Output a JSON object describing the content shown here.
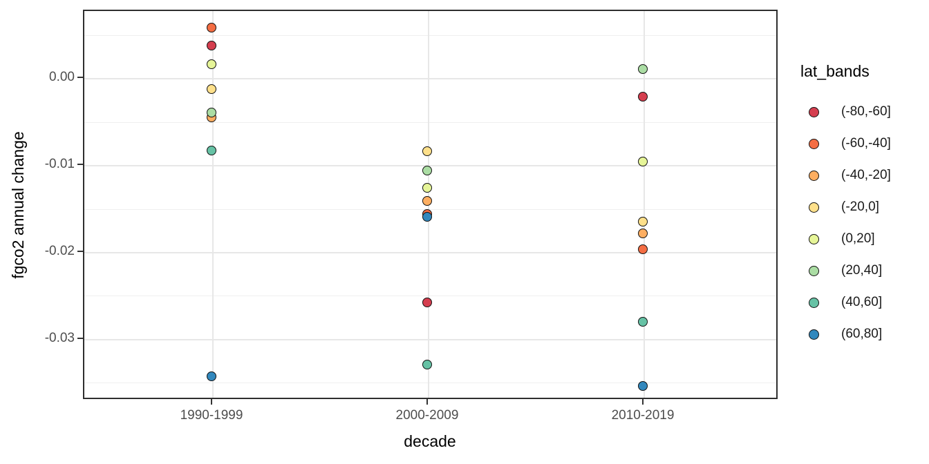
{
  "figure": {
    "y_axis_title": "fgco2 annual change",
    "x_axis_title": "decade",
    "legend_title": "lat_bands"
  },
  "chart_data": {
    "type": "scatter",
    "x_type": "categorical",
    "title": "",
    "xlabel": "decade",
    "ylabel": "fgco2 annual change",
    "categories": [
      "1990-1999",
      "2000-2009",
      "2010-2019"
    ],
    "ylim": [
      -0.037,
      0.0078
    ],
    "y_ticks": [
      {
        "value": 0.0,
        "label": "0.00"
      },
      {
        "value": -0.01,
        "label": "-0.01"
      },
      {
        "value": -0.02,
        "label": "-0.02"
      },
      {
        "value": -0.03,
        "label": "-0.03"
      }
    ],
    "y_minor_ticks": [
      0.005,
      -0.005,
      -0.015,
      -0.025,
      -0.035
    ],
    "grid": true,
    "legend_title": "lat_bands",
    "legend_position": "right",
    "point_outline_color": "#111111",
    "series": [
      {
        "name": "(-80,-60]",
        "color": "#d53e4f",
        "values": [
          0.0037,
          -0.0259,
          -0.0022
        ]
      },
      {
        "name": "(-60,-40]",
        "color": "#f46d43",
        "values": [
          0.0057,
          -0.0157,
          -0.0198
        ]
      },
      {
        "name": "(-40,-20]",
        "color": "#fdae61",
        "values": [
          -0.0046,
          -0.0142,
          -0.0179
        ]
      },
      {
        "name": "(-20,0]",
        "color": "#fee08b",
        "values": [
          -0.0013,
          -0.0085,
          -0.0166
        ]
      },
      {
        "name": "(0,20]",
        "color": "#e6f598",
        "values": [
          0.0015,
          -0.0127,
          -0.0097
        ]
      },
      {
        "name": "(20,40]",
        "color": "#abdda4",
        "values": [
          -0.004,
          -0.0107,
          0.001
        ]
      },
      {
        "name": "(40,60]",
        "color": "#66c2a5",
        "values": [
          -0.0084,
          -0.033,
          -0.0281
        ]
      },
      {
        "name": "(60,80]",
        "color": "#3288bd",
        "values": [
          -0.0344,
          -0.016,
          -0.0355
        ]
      }
    ]
  }
}
